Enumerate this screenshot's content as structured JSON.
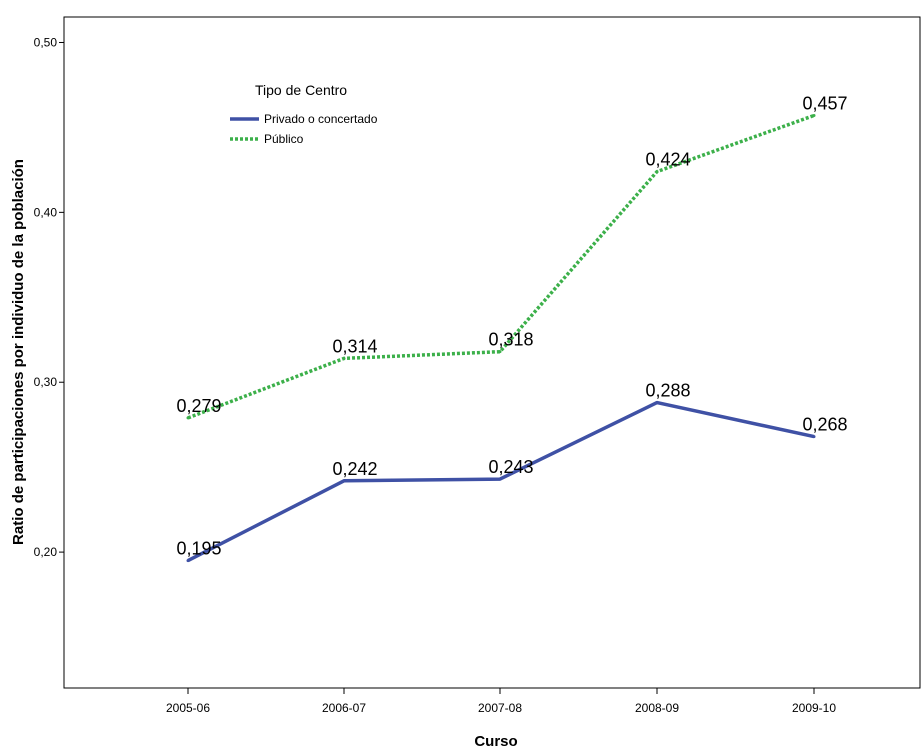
{
  "chart_data": {
    "type": "line",
    "xlabel": "Curso",
    "ylabel": "Ratio de participaciones por individuo de la población",
    "categories": [
      "2005-06",
      "2006-07",
      "2007-08",
      "2008-09",
      "2009-10"
    ],
    "ylim": [
      0.12,
      0.515
    ],
    "yticks": [
      0.2,
      0.3,
      0.4,
      0.5
    ],
    "ytick_labels": [
      "0,20",
      "0,30",
      "0,40",
      "0,50"
    ],
    "grid": false,
    "legend": {
      "title": "Tipo de Centro",
      "placement": "top-left"
    },
    "series": [
      {
        "name": "Privado o concertado",
        "values": [
          0.195,
          0.242,
          0.243,
          0.288,
          0.268
        ],
        "labels": [
          "0,195",
          "0,242",
          "0,243",
          "0,288",
          "0,268"
        ],
        "color": "#3f51a5",
        "style": "solid"
      },
      {
        "name": "Público",
        "values": [
          0.279,
          0.314,
          0.318,
          0.424,
          0.457
        ],
        "labels": [
          "0,279",
          "0,314",
          "0,318",
          "0,424",
          "0,457"
        ],
        "color": "#3cb04a",
        "style": "dotted"
      }
    ]
  }
}
